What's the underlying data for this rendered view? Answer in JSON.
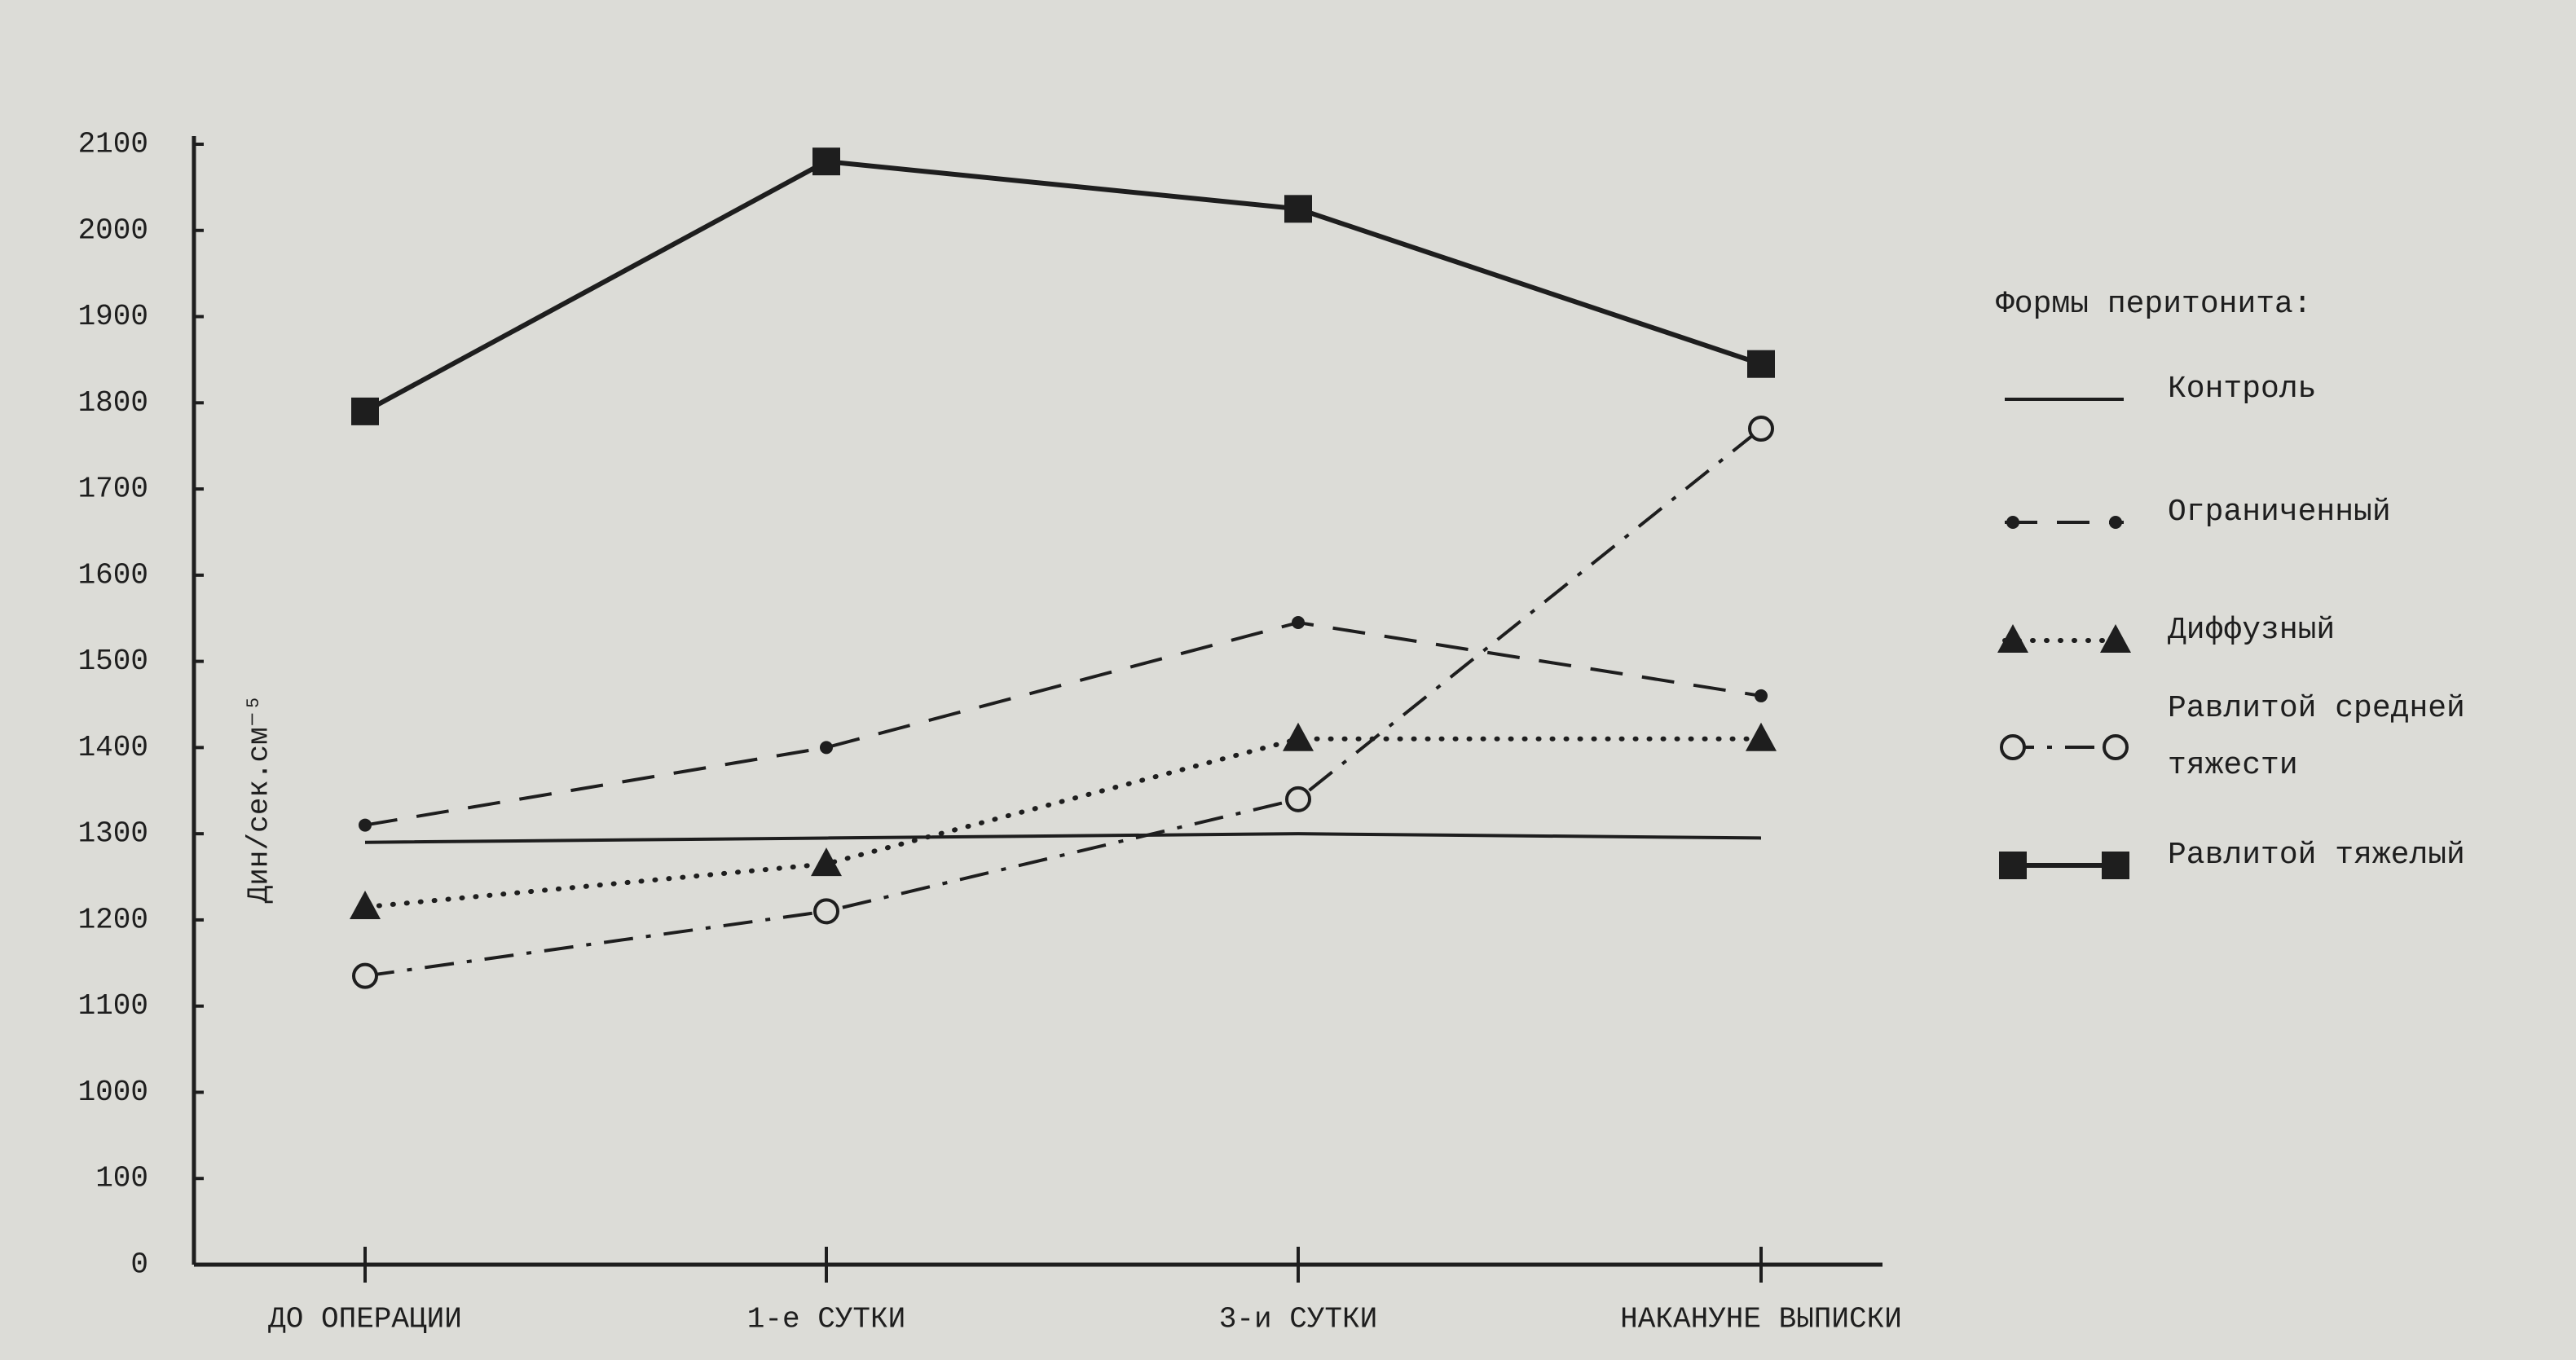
{
  "chart_data": {
    "type": "line",
    "y_label": "Дин/сек.см⁻⁵",
    "legend_title": "Формы перитонита:",
    "legend_position": "right",
    "categories": [
      "ДО ОПЕРАЦИИ",
      "1-е СУТКИ",
      "3-и СУТКИ",
      "НАКАНУНЕ ВЫПИСКИ"
    ],
    "yticks": [
      0,
      100,
      1000,
      1100,
      1200,
      1300,
      1400,
      1500,
      1600,
      1700,
      1800,
      1900,
      2000,
      2100
    ],
    "ylim": [
      0,
      2100
    ],
    "series": [
      {
        "name": "Контроль",
        "color": "#1e1e1e",
        "line_style": "solid",
        "marker": "none",
        "values": [
          1290,
          1295,
          1300,
          1295
        ]
      },
      {
        "name": "Ограниченный",
        "color": "#1e1e1e",
        "line_style": "dashed",
        "marker": "dot",
        "values": [
          1310,
          1400,
          1545,
          1460
        ]
      },
      {
        "name": "Диффузный",
        "color": "#1e1e1e",
        "line_style": "dotted",
        "marker": "triangle",
        "values": [
          1215,
          1265,
          1410,
          1410
        ]
      },
      {
        "name": "Равлитой средней тяжести",
        "color": "#1e1e1e",
        "line_style": "dashdot",
        "marker": "circle",
        "values": [
          1135,
          1210,
          1340,
          1770
        ]
      },
      {
        "name": "Равлитой тяжелый",
        "color": "#1e1e1e",
        "line_style": "thick",
        "marker": "square",
        "values": [
          1790,
          2080,
          2025,
          1845
        ]
      }
    ]
  }
}
